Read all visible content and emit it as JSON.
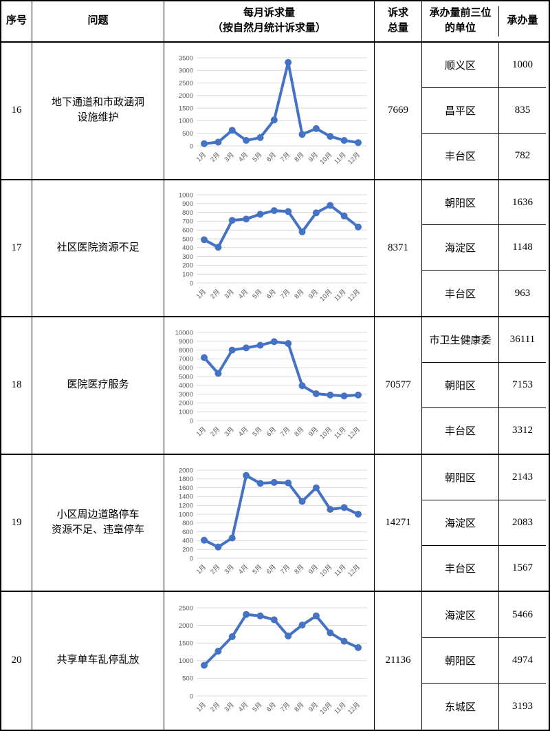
{
  "colors": {
    "line": "#4472C4",
    "grid": "#D9D9D9",
    "axis_label": "#595959",
    "border": "#000000"
  },
  "header": {
    "seq": "序号",
    "problem": "问题",
    "chart": "每月诉求量\n（按自然月统计诉求量）",
    "total": "诉求\n总量",
    "units": "承办量前三位\n的单位",
    "volume": "承办量"
  },
  "rows": [
    {
      "seq": "16",
      "problem": "地下通道和市政涵洞\n设施维护",
      "total": "7669",
      "units": [
        {
          "name": "顺义区",
          "value": "1000"
        },
        {
          "name": "昌平区",
          "value": "835"
        },
        {
          "name": "丰台区",
          "value": "782"
        }
      ]
    },
    {
      "seq": "17",
      "problem": "社区医院资源不足",
      "total": "8371",
      "units": [
        {
          "name": "朝阳区",
          "value": "1636"
        },
        {
          "name": "海淀区",
          "value": "1148"
        },
        {
          "name": "丰台区",
          "value": "963"
        }
      ]
    },
    {
      "seq": "18",
      "problem": "医院医疗服务",
      "total": "70577",
      "units": [
        {
          "name": "市卫生健康委",
          "value": "36111"
        },
        {
          "name": "朝阳区",
          "value": "7153"
        },
        {
          "name": "丰台区",
          "value": "3312"
        }
      ]
    },
    {
      "seq": "19",
      "problem": "小区周边道路停车\n资源不足、违章停车",
      "total": "14271",
      "units": [
        {
          "name": "朝阳区",
          "value": "2143"
        },
        {
          "name": "海淀区",
          "value": "2083"
        },
        {
          "name": "丰台区",
          "value": "1567"
        }
      ]
    },
    {
      "seq": "20",
      "problem": "共享单车乱停乱放",
      "total": "21136",
      "units": [
        {
          "name": "海淀区",
          "value": "5466"
        },
        {
          "name": "朝阳区",
          "value": "4974"
        },
        {
          "name": "东城区",
          "value": "3193"
        }
      ]
    }
  ],
  "chart_data": [
    {
      "type": "line",
      "row_seq": "16",
      "title": "地下通道和市政涵洞设施维护 每月诉求量",
      "categories": [
        "1月",
        "2月",
        "3月",
        "4月",
        "5月",
        "6月",
        "7月",
        "8月",
        "9月",
        "10月",
        "11月",
        "12月"
      ],
      "values": [
        90,
        150,
        620,
        220,
        330,
        1030,
        3320,
        460,
        690,
        380,
        220,
        130
      ],
      "ylim": [
        0,
        3500
      ],
      "ytick": 500,
      "grid": true,
      "legend": "none"
    },
    {
      "type": "line",
      "row_seq": "17",
      "title": "社区医院资源不足 每月诉求量",
      "categories": [
        "1月",
        "2月",
        "3月",
        "4月",
        "5月",
        "6月",
        "7月",
        "8月",
        "9月",
        "10月",
        "11月",
        "12月"
      ],
      "values": [
        490,
        405,
        710,
        725,
        780,
        820,
        810,
        580,
        795,
        880,
        760,
        635
      ],
      "ylim": [
        0,
        1000
      ],
      "ytick": 100,
      "grid": true,
      "legend": "none"
    },
    {
      "type": "line",
      "row_seq": "18",
      "title": "医院医疗服务 每月诉求量",
      "categories": [
        "1月",
        "2月",
        "3月",
        "4月",
        "5月",
        "6月",
        "7月",
        "8月",
        "9月",
        "10月",
        "11月",
        "12月"
      ],
      "values": [
        7150,
        5350,
        8000,
        8250,
        8550,
        8950,
        8750,
        3950,
        3050,
        2900,
        2800,
        2900
      ],
      "ylim": [
        0,
        10000
      ],
      "ytick": 1000,
      "grid": true,
      "legend": "none"
    },
    {
      "type": "line",
      "row_seq": "19",
      "title": "小区周边道路停车资源不足、违章停车 每月诉求量",
      "categories": [
        "1月",
        "2月",
        "3月",
        "4月",
        "5月",
        "6月",
        "7月",
        "8月",
        "9月",
        "10月",
        "11月",
        "12月"
      ],
      "values": [
        410,
        255,
        460,
        1880,
        1700,
        1720,
        1710,
        1290,
        1600,
        1110,
        1150,
        1000
      ],
      "ylim": [
        0,
        2000
      ],
      "ytick": 200,
      "grid": true,
      "legend": "none"
    },
    {
      "type": "line",
      "row_seq": "20",
      "title": "共享单车乱停乱放 每月诉求量",
      "categories": [
        "1月",
        "2月",
        "3月",
        "4月",
        "5月",
        "6月",
        "7月",
        "8月",
        "9月",
        "10月",
        "11月",
        "12月"
      ],
      "values": [
        870,
        1270,
        1680,
        2310,
        2270,
        2160,
        1700,
        2010,
        2270,
        1790,
        1550,
        1370
      ],
      "ylim": [
        0,
        2500
      ],
      "ytick": 500,
      "grid": true,
      "legend": "none"
    }
  ]
}
